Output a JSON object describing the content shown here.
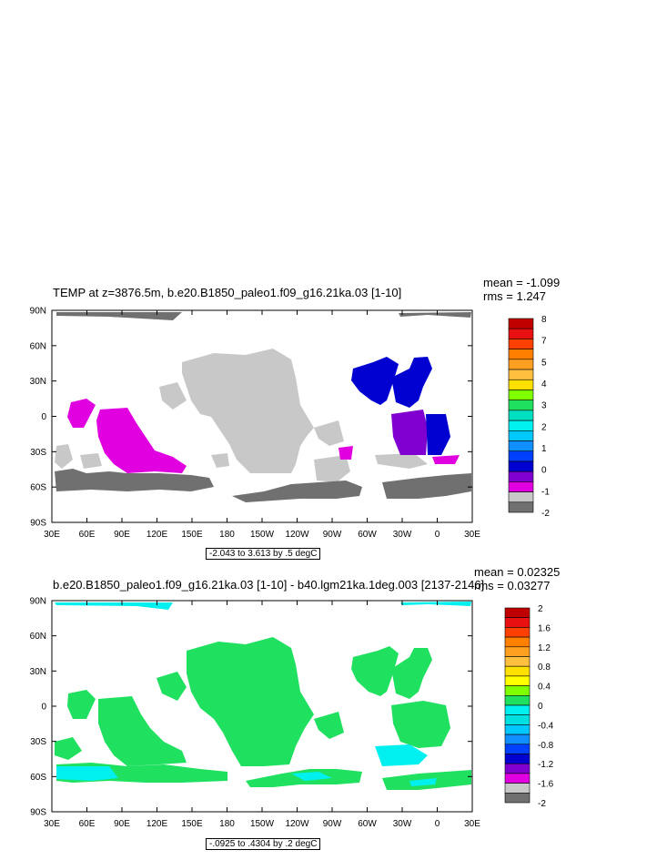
{
  "panels": [
    {
      "title": "TEMP at z=3876.5m, b.e20.B1850_paleo1.f09_g16.21ka.03 [1-10]",
      "stats": {
        "mean": "mean = -1.099",
        "rms": "rms = 1.247"
      },
      "note": "-2.043 to 3.613 by .5 degC",
      "lat_labels": [
        "90N",
        "60N",
        "30N",
        "0",
        "30S",
        "60S",
        "90S"
      ],
      "lon_labels": [
        "30E",
        "60E",
        "90E",
        "120E",
        "150E",
        "180",
        "150W",
        "120W",
        "90W",
        "60W",
        "30W",
        "0",
        "30E"
      ],
      "legend": {
        "labels": [
          "8",
          "7",
          "5",
          "4",
          "3",
          "2",
          "1",
          "0",
          "-1",
          "-2"
        ],
        "colors": [
          "#c00000",
          "#e81010",
          "#ff4000",
          "#ff8000",
          "#ffa020",
          "#ffc040",
          "#ffe000",
          "#80ff00",
          "#20e060",
          "#00e0c0",
          "#00f0f0",
          "#00c8ff",
          "#1090ff",
          "#0040ff",
          "#0000d0",
          "#8000d0",
          "#e000e0",
          "#c8c8c8",
          "#707070"
        ]
      }
    },
    {
      "title": "b.e20.B1850_paleo1.f09_g16.21ka.03 [1-10] - b40.lgm21ka.1deg.003 [2137-2146]",
      "stats": {
        "mean": "mean = 0.02325",
        "rms": "rms = 0.03277"
      },
      "note": "-.0925 to .4304 by .2 degC",
      "lat_labels": [
        "90N",
        "60N",
        "30N",
        "0",
        "30S",
        "60S",
        "90S"
      ],
      "lon_labels": [
        "30E",
        "60E",
        "90E",
        "120E",
        "150E",
        "180",
        "150W",
        "120W",
        "90W",
        "60W",
        "30W",
        "0",
        "30E"
      ],
      "legend": {
        "labels": [
          "2",
          "1.6",
          "1.2",
          "0.8",
          "0.4",
          "0",
          "-0.4",
          "-0.8",
          "-1.2",
          "-1.6",
          "-2"
        ],
        "colors": [
          "#c00000",
          "#e81010",
          "#ff4000",
          "#ff8000",
          "#ffa020",
          "#ffc040",
          "#ffe000",
          "#ffff00",
          "#80ff00",
          "#20e060",
          "#00f0f0",
          "#00e0e0",
          "#00c8ff",
          "#1090ff",
          "#0040ff",
          "#0000d0",
          "#8000d0",
          "#e000e0",
          "#c8c8c8",
          "#707070"
        ]
      }
    }
  ]
}
